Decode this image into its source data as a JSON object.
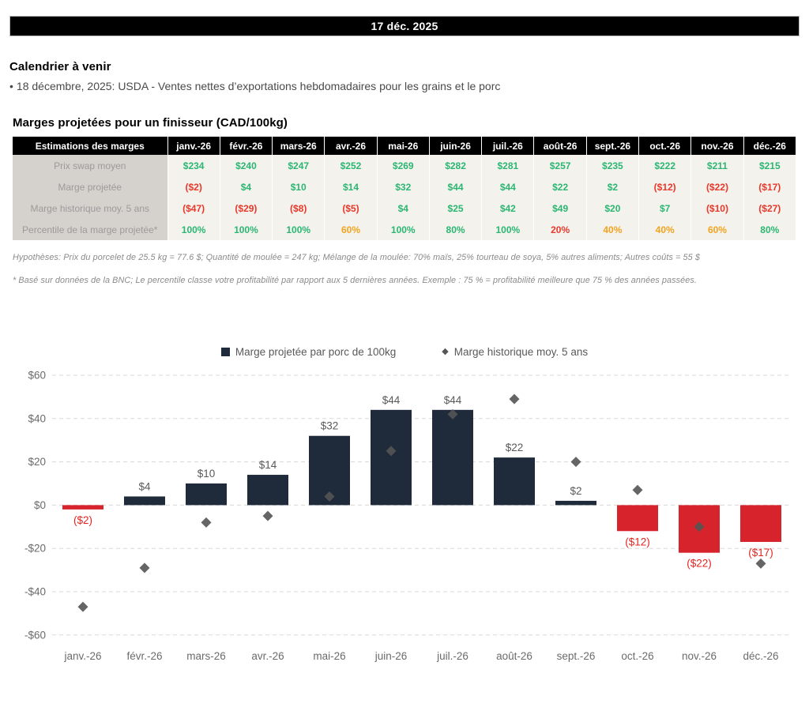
{
  "header": {
    "date": "17 déc. 2025"
  },
  "calendar": {
    "title": "Calendrier à venir",
    "bullet_char": "•",
    "items": [
      "18 décembre, 2025: USDA - Ventes nettes d’exportations hebdomadaires pour les grains et le porc"
    ]
  },
  "margins_table": {
    "title": "Marges projetées pour un finisseur (CAD/100kg)",
    "corner_label": "Estimations des marges",
    "months": [
      "janv.-26",
      "févr.-26",
      "mars-26",
      "avr.-26",
      "mai-26",
      "juin-26",
      "juil.-26",
      "août-26",
      "sept.-26",
      "oct.-26",
      "nov.-26",
      "déc.-26"
    ],
    "rows": [
      {
        "label": "Prix swap moyen",
        "values": [
          "$234",
          "$240",
          "$247",
          "$252",
          "$269",
          "$282",
          "$281",
          "$257",
          "$235",
          "$222",
          "$211",
          "$215"
        ]
      },
      {
        "label": "Marge projetée",
        "values": [
          "($2)",
          "$4",
          "$10",
          "$14",
          "$32",
          "$44",
          "$44",
          "$22",
          "$2",
          "($12)",
          "($22)",
          "($17)"
        ]
      },
      {
        "label": "Marge historique moy. 5 ans",
        "values": [
          "($47)",
          "($29)",
          "($8)",
          "($5)",
          "$4",
          "$25",
          "$42",
          "$49",
          "$20",
          "$7",
          "($10)",
          "($27)"
        ]
      },
      {
        "label": "Percentile de la marge projetée*",
        "values": [
          "100%",
          "100%",
          "100%",
          "60%",
          "100%",
          "80%",
          "100%",
          "20%",
          "40%",
          "40%",
          "60%",
          "80%"
        ]
      }
    ],
    "value_colors": {
      "positive": "#2bb673",
      "negative": "#e8382b",
      "mid_percentile": "#f2a31e"
    }
  },
  "notes": [
    "Hypothèses: Prix du porcelet de 25.5 kg = 77.6 $; Quantité de moulée = 247 kg; Mélange de la moulée: 70% maïs, 25% tourteau de soya, 5% autres aliments; Autres coûts = 55 $",
    "* Basé sur données de la BNC; Le percentile classe votre profitabilité par rapport aux 5 dernières années. Exemple : 75 % = profitabilité meilleure que 75 % des années passées."
  ],
  "chart_data": {
    "type": "bar",
    "categories": [
      "janv.-26",
      "févr.-26",
      "mars-26",
      "avr.-26",
      "mai-26",
      "juin-26",
      "juil.-26",
      "août-26",
      "sept.-26",
      "oct.-26",
      "nov.-26",
      "déc.-26"
    ],
    "series": [
      {
        "name": "Marge projetée par porc de 100kg",
        "type": "bar",
        "values": [
          -2,
          4,
          10,
          14,
          32,
          44,
          44,
          22,
          2,
          -12,
          -22,
          -17
        ],
        "labels": [
          "($2)",
          "$4",
          "$10",
          "$14",
          "$32",
          "$44",
          "$44",
          "$22",
          "$2",
          "($12)",
          "($22)",
          "($17)"
        ],
        "color_positive": "#1f2b3a",
        "color_negative": "#d7242c",
        "label_color_positive": "#595959",
        "label_color_negative": "#e42320"
      },
      {
        "name": "Marge historique moy. 5 ans",
        "type": "scatter",
        "marker": "diamond",
        "values": [
          -47,
          -29,
          -8,
          -5,
          4,
          25,
          42,
          49,
          20,
          7,
          -10,
          -27
        ],
        "color": "#545454"
      }
    ],
    "ylim": [
      -60,
      60
    ],
    "ytick_step": 20,
    "ytick_labels": [
      "$60",
      "$40",
      "$20",
      "$0",
      "-$20",
      "-$40",
      "-$60"
    ],
    "grid": "horizontal-dashed",
    "grid_color": "#d8d8d8",
    "axis_label_color": "#6b6b6b",
    "legend_position": "top"
  }
}
